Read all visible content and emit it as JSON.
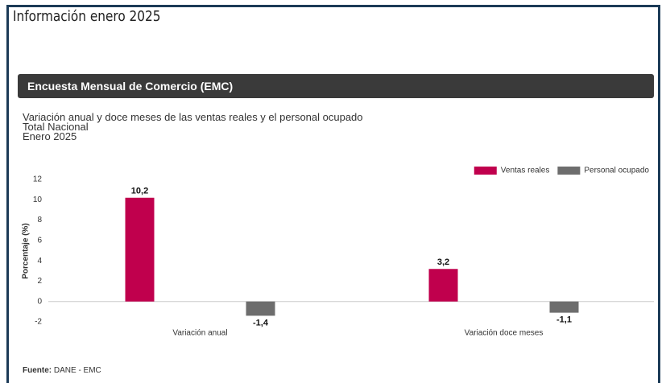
{
  "page": {
    "heading": "Información enero 2025",
    "section": "Encuesta Mensual de Comercio (EMC)",
    "source_label": "Fuente:",
    "source": "DANE - EMC"
  },
  "chart_data": {
    "type": "bar",
    "title": "Variación anual y doce meses de las ventas reales y el personal ocupado",
    "subtitle": "Total Nacional",
    "period": "Enero 2025",
    "y_label": "Porcentaje (%)",
    "categories": [
      "Variación anual",
      "Variación doce meses"
    ],
    "series": [
      {
        "name": "Ventas reales",
        "color": "#c0004d",
        "values": [
          10.2,
          3.2
        ],
        "value_labels": [
          "10,2",
          "3,2"
        ]
      },
      {
        "name": "Personal ocupado",
        "color": "#6d6d6d",
        "values": [
          -1.4,
          -1.1
        ],
        "value_labels": [
          "-1,4",
          "-1,1"
        ]
      }
    ],
    "ylim": [
      -2,
      12
    ],
    "yticks": [
      -2,
      0,
      2,
      4,
      6,
      8,
      10,
      12
    ],
    "grid": false,
    "legend": "top-right"
  }
}
